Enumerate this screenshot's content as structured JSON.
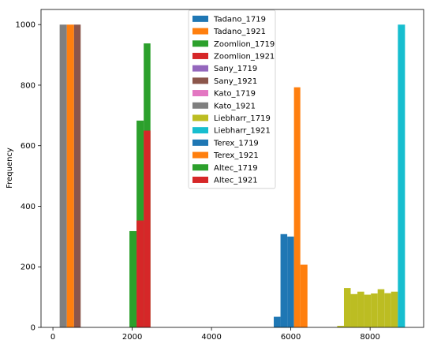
{
  "chart_data": {
    "type": "bar",
    "subtype": "histogram",
    "title": "",
    "xlabel": "",
    "ylabel": "Frequency",
    "xlim": [
      -300,
      9350
    ],
    "ylim": [
      0,
      1050
    ],
    "xticks": [
      0,
      2000,
      4000,
      6000,
      8000
    ],
    "yticks": [
      0,
      200,
      400,
      600,
      800,
      1000
    ],
    "grid": false,
    "legend_position": "top-center",
    "series": [
      {
        "name": "Tadano_1719",
        "color": "#1f77b4",
        "bins": [
          [
            5570,
            5740,
            35
          ],
          [
            5740,
            5910,
            308
          ],
          [
            5910,
            6080,
            300
          ]
        ]
      },
      {
        "name": "Tadano_1921",
        "color": "#ff7f0e",
        "bins": [
          [
            6080,
            6240,
            793
          ],
          [
            6240,
            6420,
            207
          ]
        ]
      },
      {
        "name": "Zoomlion_1719",
        "color": "#2ca02c",
        "bins": [
          [
            1930,
            2110,
            318
          ],
          [
            2110,
            2290,
            683
          ],
          [
            2290,
            2460,
            938
          ]
        ]
      },
      {
        "name": "Zoomlion_1921",
        "color": "#d62728",
        "bins": [
          [
            2110,
            2290,
            353
          ],
          [
            2290,
            2460,
            650
          ]
        ]
      },
      {
        "name": "Sany_1719",
        "color": "#9467bd",
        "bins": []
      },
      {
        "name": "Sany_1921",
        "color": "#8c564b",
        "bins": [
          [
            530,
            700,
            1000
          ]
        ]
      },
      {
        "name": "Kato_1719",
        "color": "#e377c2",
        "bins": []
      },
      {
        "name": "Kato_1921",
        "color": "#7f7f7f",
        "bins": [
          [
            170,
            350,
            1000
          ]
        ]
      },
      {
        "name": "Liebharr_1719",
        "color": "#bcbd22",
        "bins": [
          [
            7170,
            7340,
            5
          ],
          [
            7340,
            7510,
            130
          ],
          [
            7510,
            7680,
            110
          ],
          [
            7680,
            7850,
            118
          ],
          [
            7850,
            8020,
            108
          ],
          [
            8020,
            8190,
            112
          ],
          [
            8190,
            8360,
            126
          ],
          [
            8360,
            8530,
            113
          ],
          [
            8530,
            8700,
            118
          ]
        ]
      },
      {
        "name": "Liebharr_1921",
        "color": "#17becf",
        "bins": [
          [
            8700,
            8880,
            1000
          ]
        ]
      },
      {
        "name": "Terex_1719",
        "color": "#1f77b4",
        "bins": []
      },
      {
        "name": "Terex_1921",
        "color": "#ff7f0e",
        "bins": [
          [
            350,
            530,
            1000
          ]
        ]
      },
      {
        "name": "Altec_1719",
        "color": "#2ca02c",
        "bins": []
      },
      {
        "name": "Altec_1921",
        "color": "#d62728",
        "bins": []
      }
    ]
  }
}
